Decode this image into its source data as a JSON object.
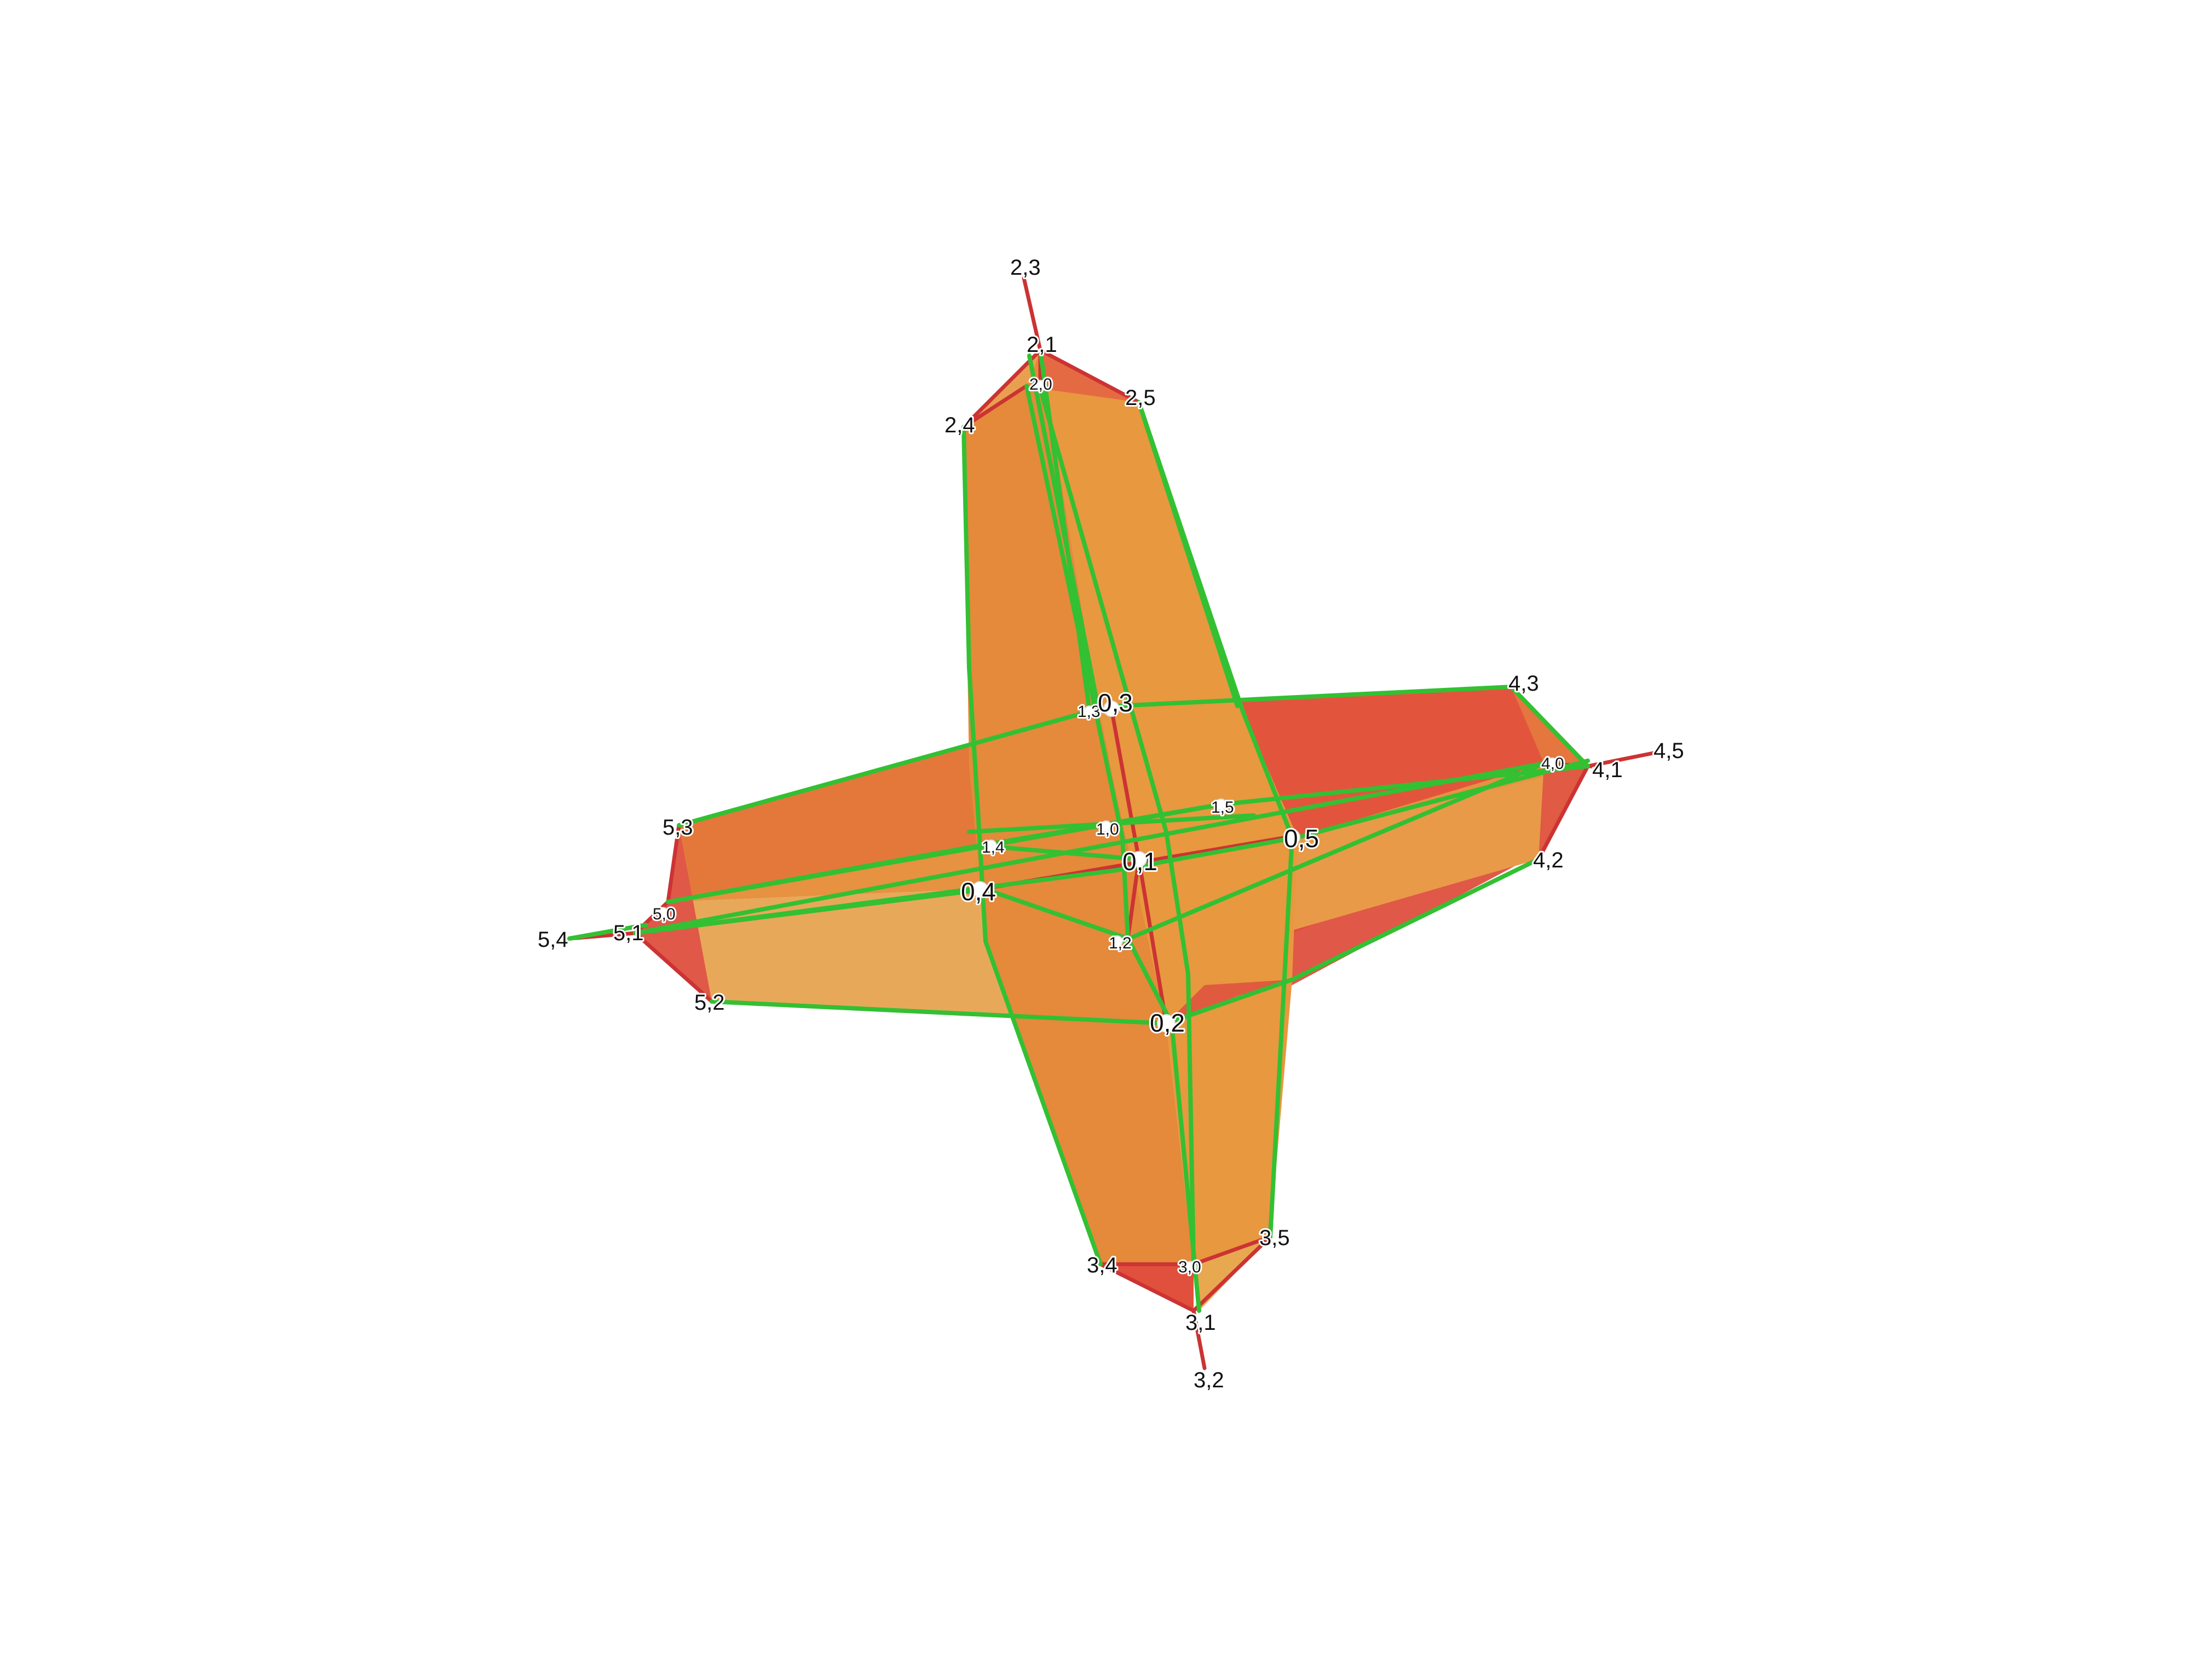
{
  "colors": {
    "background": "#ffffff",
    "face_light": "#e8a050",
    "face_mid": "#e48a38",
    "face_dark": "#e4703a",
    "face_red": "#e05040",
    "edge_green": "#33c033",
    "edge_red": "#cc3333",
    "vertex": "#ffffff",
    "label": "#111111"
  },
  "vertex_labels": {
    "v23": "2,3",
    "v21": "2,1",
    "v20": "2,0",
    "v25": "2,5",
    "v24": "2,4",
    "v13": "1,3",
    "v03": "0,3",
    "v43": "4,3",
    "v40": "4,0",
    "v41": "4,1",
    "v45": "4,5",
    "v42": "4,2",
    "v53": "5,3",
    "v14": "1,4",
    "v10": "1,0",
    "v15": "1,5",
    "v05": "0,5",
    "v01": "0,1",
    "v04": "0,4",
    "v50": "5,0",
    "v51": "5,1",
    "v54": "5,4",
    "v12": "1,2",
    "v52": "5,2",
    "v02": "0,2",
    "v35": "3,5",
    "v34": "3,4",
    "v30": "3,0",
    "v31": "3,1",
    "v32": "3,2"
  }
}
